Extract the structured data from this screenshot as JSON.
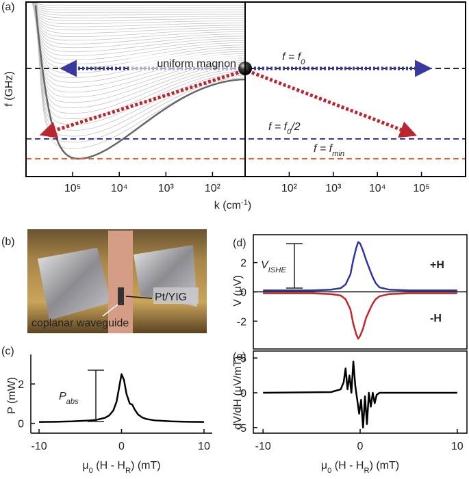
{
  "chart_data": [
    {
      "type": "dispersion",
      "panel": "(a)",
      "ylabel": "f (GHz)",
      "xlabel": [
        "k (cm",
        "-1",
        ")"
      ],
      "xscale": "log",
      "xlim_left": [
        1000000,
        20
      ],
      "xticks_left": [
        {
          "value": 100000,
          "label": "10⁵"
        },
        {
          "value": 10000,
          "label": "10⁴"
        },
        {
          "value": 1000,
          "label": "10³"
        },
        {
          "value": 100,
          "label": "10²"
        }
      ],
      "xlim_right": [
        10,
        1000000
      ],
      "xticks_right": [
        {
          "value": 100,
          "label": "10²"
        },
        {
          "value": 1000,
          "label": "10³"
        },
        {
          "value": 10000,
          "label": "10⁴"
        },
        {
          "value": 100000,
          "label": "10⁵"
        }
      ],
      "annotations": {
        "uniform": "uniform magnon",
        "f0": [
          "f = f",
          "0"
        ],
        "f0half": [
          "f = f",
          "0",
          "/2"
        ],
        "fmin": [
          "f = f",
          "min"
        ]
      }
    },
    {
      "type": "line",
      "panel": "(c)",
      "ylabel": "P (mW)",
      "xlabel": [
        "μ",
        "0",
        " (H - H",
        "R",
        ") (mT)"
      ],
      "bracket_label": [
        "P",
        "abs"
      ],
      "x": [
        -10,
        -8,
        -6,
        -4,
        -3,
        -2,
        -1.5,
        -1,
        -0.6,
        -0.3,
        0,
        0.3,
        0.6,
        1,
        1.3,
        1.6,
        2,
        2.5,
        3,
        4,
        6,
        8,
        10
      ],
      "series": [
        {
          "color": "#000000",
          "values": [
            0.07,
            0.08,
            0.1,
            0.14,
            0.18,
            0.28,
            0.4,
            0.65,
            1.1,
            1.8,
            2.5,
            2.2,
            1.5,
            1.0,
            0.95,
            0.7,
            0.45,
            0.3,
            0.22,
            0.15,
            0.1,
            0.08,
            0.07
          ]
        }
      ],
      "xlim": [
        -11,
        11
      ],
      "ylim": [
        -0.5,
        3.5
      ],
      "xticks": [
        -10,
        0,
        10
      ],
      "yticks": [
        0,
        2
      ]
    },
    {
      "type": "line",
      "panel": "(d)",
      "ylabel": "V (μV)",
      "bracket_label": [
        "V",
        "ISHE"
      ],
      "zero_line": true,
      "x": [
        -10,
        -5,
        -3,
        -2,
        -1.5,
        -1,
        -0.7,
        -0.4,
        -0.2,
        0,
        0.3,
        0.6,
        1,
        1.3,
        1.6,
        2,
        3,
        5,
        10
      ],
      "series": [
        {
          "name": "+H",
          "color": "#2f35a0",
          "values": [
            0.1,
            0.1,
            0.15,
            0.25,
            0.5,
            1.2,
            2.2,
            3.0,
            3.4,
            3.3,
            2.8,
            2.2,
            1.5,
            1.0,
            0.6,
            0.3,
            0.15,
            0.1,
            0.1
          ]
        },
        {
          "name": "-H",
          "color": "#c0272d",
          "values": [
            -0.1,
            -0.1,
            -0.15,
            -0.25,
            -0.5,
            -1.2,
            -2.2,
            -2.9,
            -3.2,
            -3.0,
            -2.5,
            -1.8,
            -1.2,
            -0.8,
            -0.5,
            -0.3,
            -0.15,
            -0.1,
            -0.1
          ]
        }
      ],
      "xlim": [
        -11,
        11
      ],
      "ylim": [
        -3.9,
        3.9
      ],
      "yticks": [
        -2,
        0,
        2
      ]
    },
    {
      "type": "line",
      "panel": "(e)",
      "ylabel": "dV/dH (μV/mT)",
      "xlabel": [
        "μ",
        "0",
        " (H - H",
        "R",
        ") (mT)"
      ],
      "x": [
        -10,
        -3,
        -2,
        -1.7,
        -1.5,
        -1.3,
        -1.1,
        -0.9,
        -0.7,
        -0.5,
        -0.3,
        -0.1,
        0.1,
        0.3,
        0.5,
        0.7,
        0.9,
        1.1,
        1.3,
        1.5,
        1.7,
        2,
        3,
        10
      ],
      "series": [
        {
          "color": "#000000",
          "values": [
            0,
            0.1,
            0.5,
            1.5,
            3.5,
            0.5,
            2.5,
            0,
            4.5,
            1,
            -1,
            -3,
            -1,
            -5,
            -0.5,
            -4.5,
            0,
            -2,
            0,
            -1.5,
            -0.3,
            0,
            0,
            0
          ]
        }
      ],
      "xlim": [
        -11,
        11
      ],
      "ylim": [
        -5.8,
        6
      ],
      "xticks": [
        -10,
        0,
        10
      ],
      "yticks": [
        -5,
        0,
        5
      ]
    }
  ],
  "photo": {
    "panel": "(b)",
    "labels": [
      "Pt/YIG",
      "coplanar waveguide"
    ]
  }
}
